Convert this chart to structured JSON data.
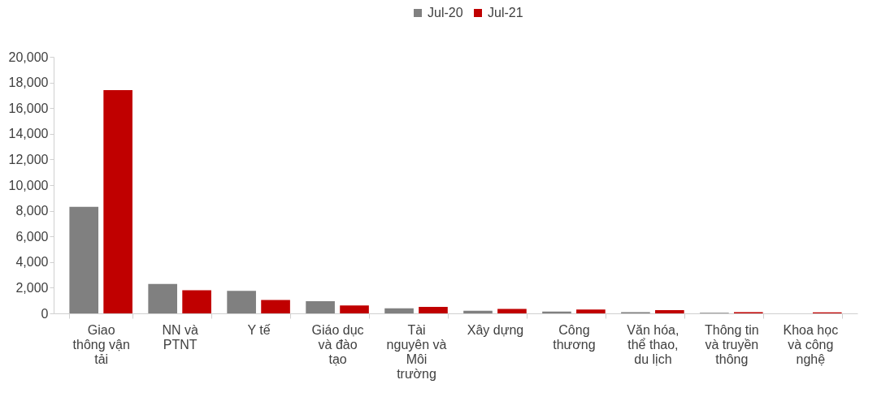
{
  "chart_data": {
    "type": "bar",
    "categories": [
      "Giao thông vận tải",
      "NN và PTNT",
      "Y tế",
      "Giáo dục và đào tạo",
      "Tài nguyên và Môi trường",
      "Xây dựng",
      "Công thương",
      "Văn hóa, thể thao, du lịch",
      "Thông tin và truyền thông",
      "Khoa học và công nghệ"
    ],
    "series": [
      {
        "name": "Jul-20",
        "color": "#808080",
        "values": [
          8300,
          2300,
          1750,
          950,
          400,
          200,
          150,
          100,
          50,
          null
        ]
      },
      {
        "name": "Jul-21",
        "color": "#c00000",
        "values": [
          17400,
          1800,
          1050,
          620,
          500,
          350,
          300,
          250,
          100,
          80
        ]
      }
    ],
    "ylim": [
      0,
      20000
    ],
    "yticks": [
      0,
      {
        "value": 2000,
        "label": "2,000"
      },
      {
        "value": 4000,
        "label": "4,000"
      },
      {
        "value": 6000,
        "label": "6,000"
      },
      {
        "value": 8000,
        "label": "8,000"
      },
      {
        "value": 10000,
        "label": "10,000"
      },
      {
        "value": 12000,
        "label": "12,000"
      },
      {
        "value": 14000,
        "label": "14,000"
      },
      {
        "value": 16000,
        "label": "16,000"
      },
      {
        "value": 18000,
        "label": "18,000"
      },
      {
        "value": 20000,
        "label": "20,000"
      }
    ],
    "grid": false,
    "legend": "top"
  }
}
